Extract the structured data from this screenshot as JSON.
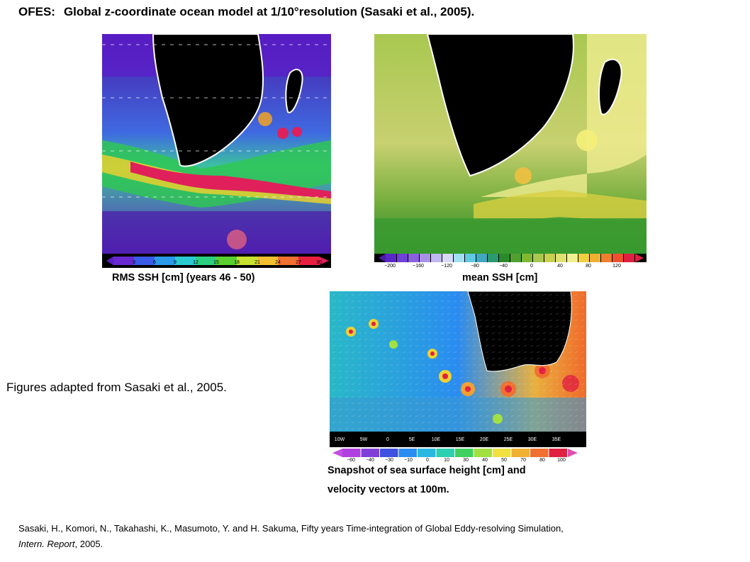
{
  "header": {
    "prefix": "OFES:",
    "title": "Global z-coordinate ocean model at 1/10°resolution (Sasaki et al., 2005)."
  },
  "panels": {
    "rms": {
      "caption": "RMS SSH [cm] (years 46 - 50)",
      "colorbar_ticks": [
        "3",
        "6",
        "9",
        "12",
        "15",
        "18",
        "21",
        "24",
        "27",
        "30"
      ]
    },
    "mean": {
      "caption": "mean SSH [cm]",
      "colorbar_ticks": [
        "−200",
        "−160",
        "−120",
        "−80",
        "−40",
        "0",
        "40",
        "80",
        "120"
      ]
    },
    "snapshot": {
      "caption_line1": "Snapshot of sea surface height [cm] and",
      "caption_line2": "velocity vectors at 100m.",
      "lon_ticks": [
        "10W",
        "5W",
        "0",
        "5E",
        "10E",
        "15E",
        "20E",
        "25E",
        "30E",
        "35E"
      ],
      "colorbar_ticks": [
        "−60",
        "−40",
        "−30",
        "−10",
        "0",
        "10",
        "30",
        "40",
        "50",
        "70",
        "80",
        "100"
      ]
    }
  },
  "note": "Figures adapted from Sasaki et al., 2005.",
  "reference": {
    "line1": "Sasaki, H., Komori, N., Takahashi, K., Masumoto, Y. and H. Sakuma, Fifty years Time-integration of Global Eddy-resolving Simulation,",
    "line2_italic": "Intern. Report",
    "line2_rest": ", 2005."
  },
  "colors": {
    "land": "#000000",
    "rms_low": "#5a1ec8",
    "rms_high": "#e0205a",
    "mean_low": "#2a8a2a",
    "mean_high": "#f5f07a",
    "snap_low": "#2a8cf0",
    "snap_high": "#f06a2a"
  }
}
